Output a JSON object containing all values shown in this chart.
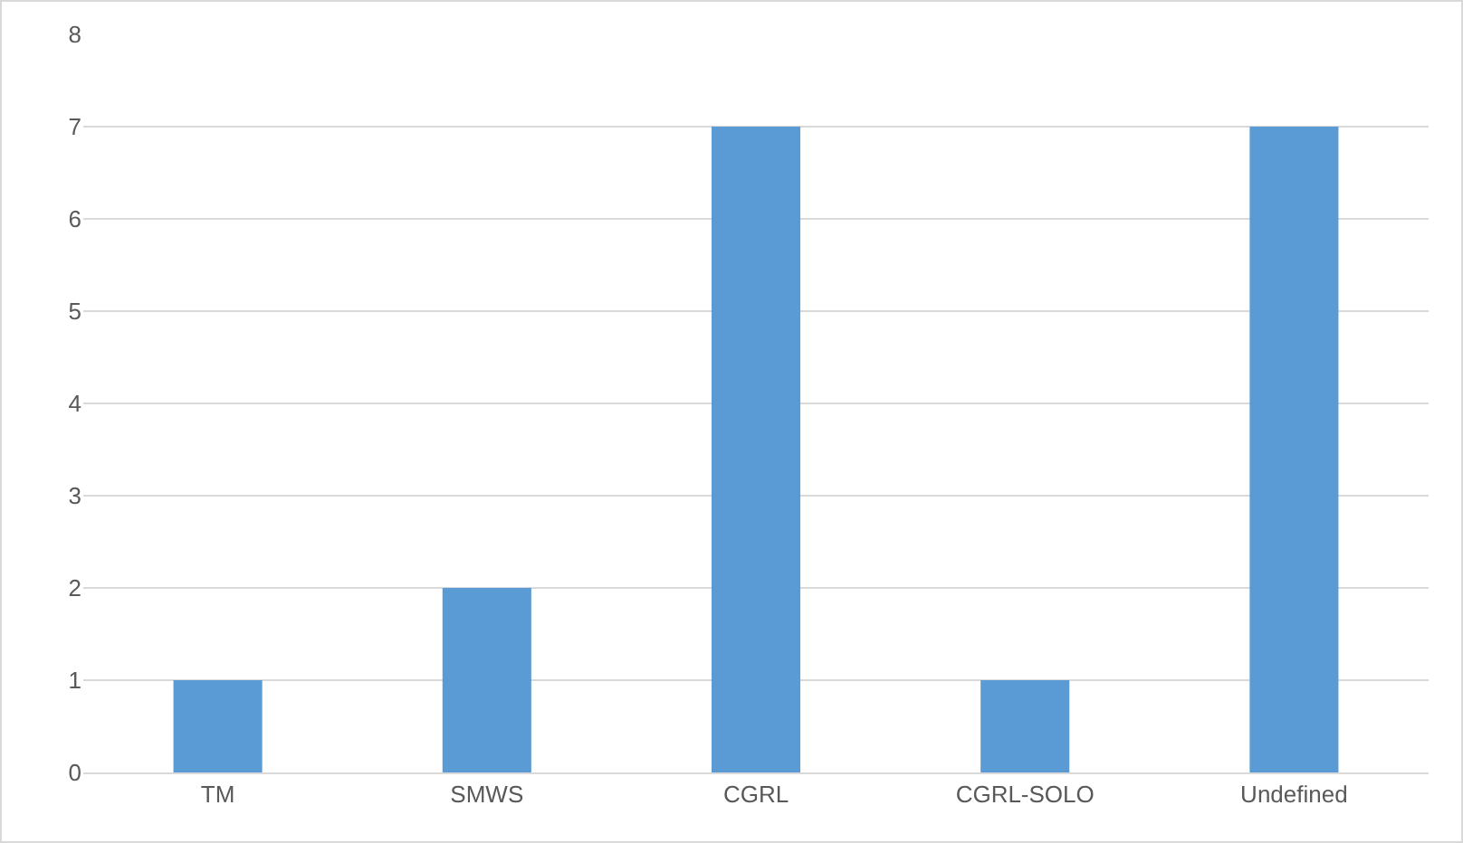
{
  "chart_data": {
    "type": "bar",
    "categories": [
      "TM",
      "SMWS",
      "CGRL",
      "CGRL-SOLO",
      "Undefined"
    ],
    "values": [
      1,
      2,
      7,
      1,
      7
    ],
    "color": "#5b9bd5",
    "ylim": [
      0,
      8
    ],
    "yticks": [
      0,
      1,
      2,
      3,
      4,
      5,
      6,
      7,
      8
    ],
    "grid": "y",
    "legend": false
  }
}
